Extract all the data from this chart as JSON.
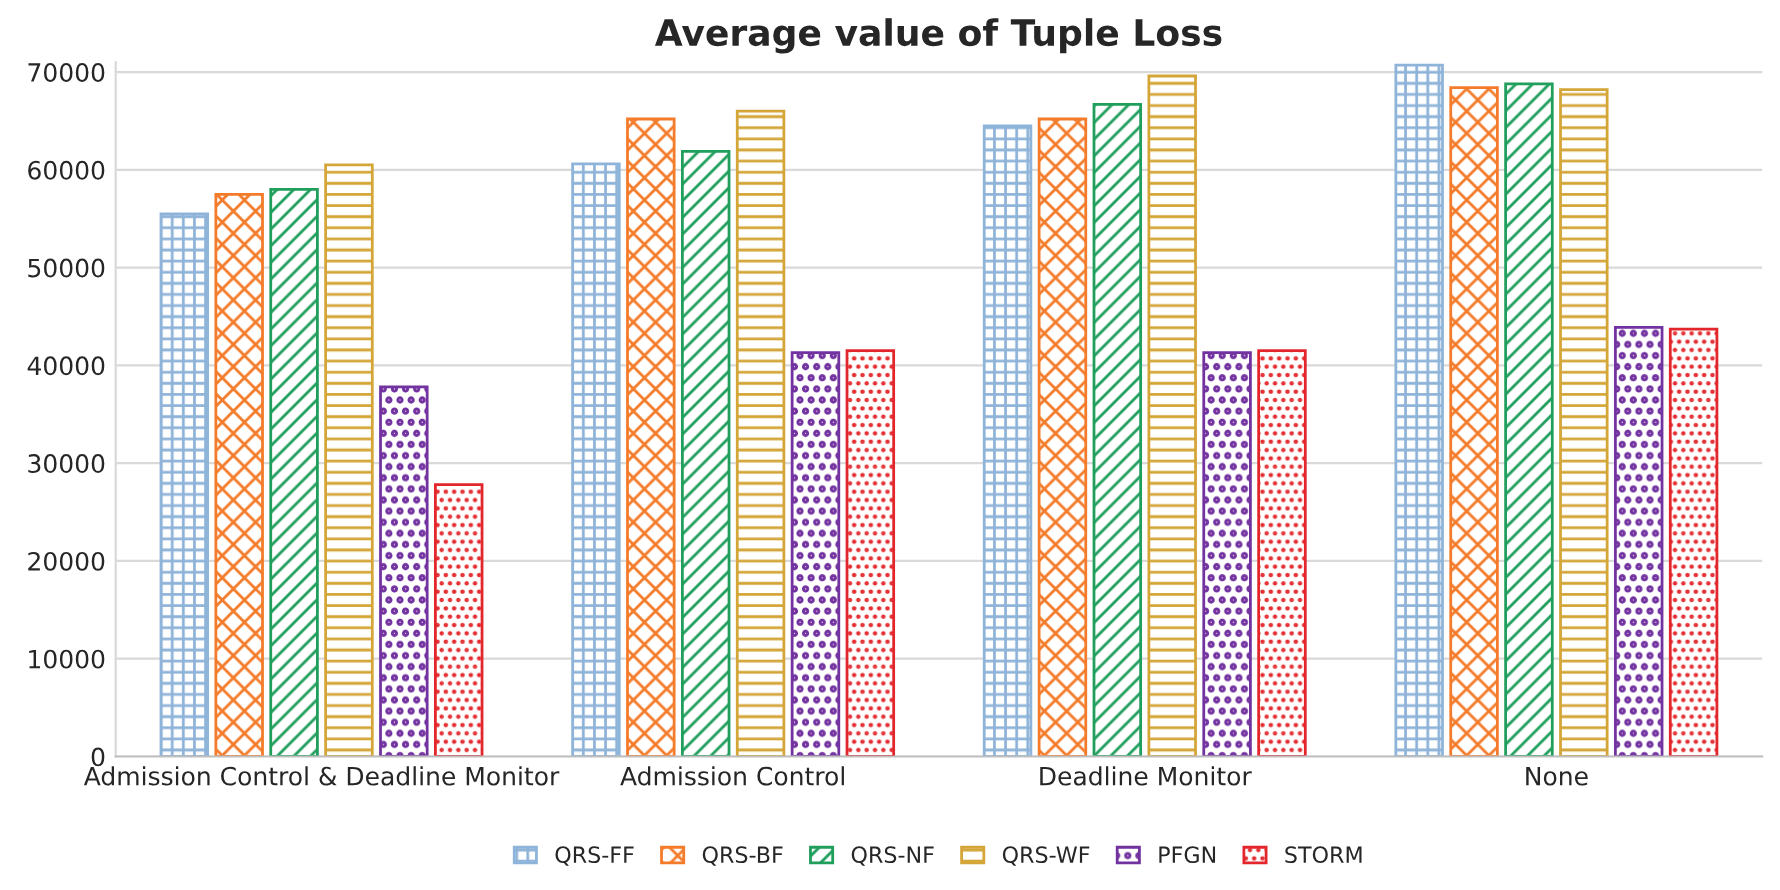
{
  "chart_data": {
    "type": "bar",
    "title": "Average value of Tuple Loss",
    "categories": [
      "Admission Control & Deadline Monitor",
      "Admission Control",
      "Deadline Monitor",
      "None"
    ],
    "series": [
      {
        "name": "QRS-FF",
        "color": "#8fb4d9",
        "values": [
          55500,
          60600,
          64500,
          70700
        ]
      },
      {
        "name": "QRS-BF",
        "color": "#f47b2a",
        "values": [
          57500,
          65200,
          65200,
          68400
        ]
      },
      {
        "name": "QRS-NF",
        "color": "#1f9e5c",
        "values": [
          58000,
          61900,
          66700,
          68800
        ]
      },
      {
        "name": "QRS-WF",
        "color": "#d4a537",
        "values": [
          60500,
          66000,
          69600,
          68200
        ]
      },
      {
        "name": "PFGN",
        "color": "#7232a0",
        "values": [
          37800,
          41300,
          41300,
          43900
        ]
      },
      {
        "name": "STORM",
        "color": "#e3262b",
        "values": [
          27800,
          41500,
          41500,
          43700
        ]
      }
    ],
    "ylim": [
      0,
      71000
    ],
    "yticks": [
      0,
      10000,
      20000,
      30000,
      40000,
      50000,
      60000,
      70000
    ],
    "grid": "y",
    "legend": "bottom"
  }
}
